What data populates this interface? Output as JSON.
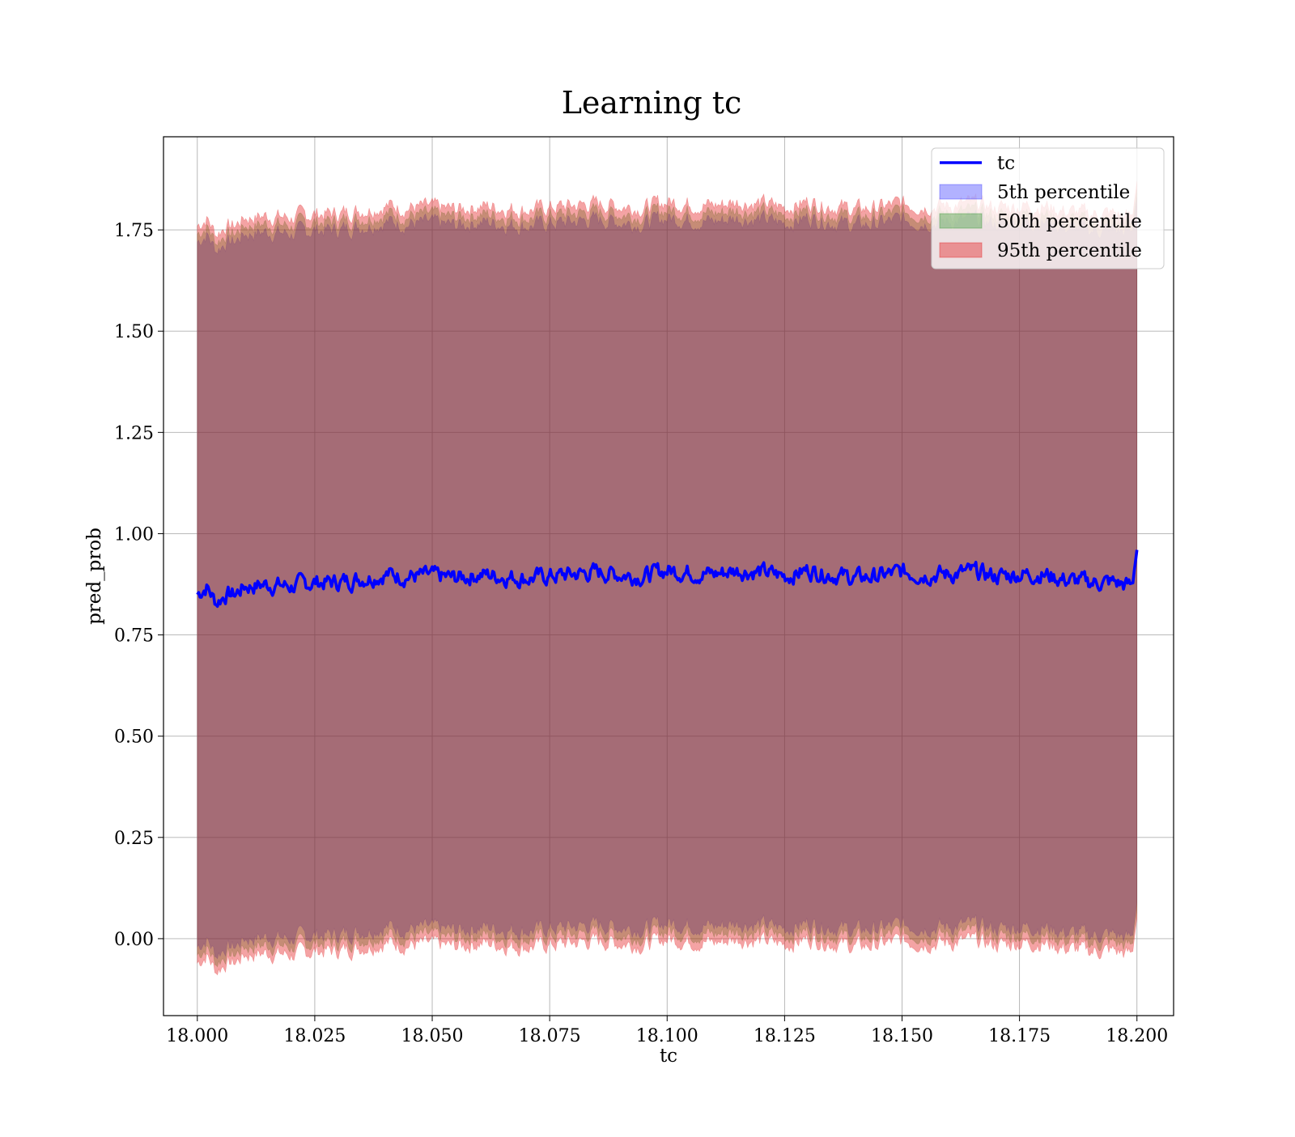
{
  "chart_data": {
    "type": "area",
    "title": "Learning tc",
    "xlabel": "tc",
    "ylabel": "pred_prob",
    "xlim": [
      17.9928,
      18.2078
    ],
    "ylim": [
      -0.19,
      1.98
    ],
    "x_ticks": [
      18.0,
      18.025,
      18.05,
      18.075,
      18.1,
      18.125,
      18.15,
      18.175,
      18.2
    ],
    "x_tick_labels": [
      "18.000",
      "18.025",
      "18.050",
      "18.075",
      "18.100",
      "18.125",
      "18.150",
      "18.175",
      "18.200"
    ],
    "y_ticks": [
      0.0,
      0.25,
      0.5,
      0.75,
      1.0,
      1.25,
      1.5,
      1.75
    ],
    "y_tick_labels": [
      "0.00",
      "0.25",
      "0.50",
      "0.75",
      "1.00",
      "1.25",
      "1.50",
      "1.75"
    ],
    "grid": true,
    "legend_position": "top-right",
    "x_range": [
      18.0,
      18.2
    ],
    "line_series": {
      "name": "tc",
      "color": "#0000ff",
      "x": [
        18.0,
        18.002,
        18.004,
        18.006,
        18.008,
        18.01,
        18.015,
        18.02,
        18.025,
        18.03,
        18.035,
        18.04,
        18.045,
        18.05,
        18.055,
        18.06,
        18.065,
        18.07,
        18.075,
        18.08,
        18.085,
        18.09,
        18.095,
        18.1,
        18.105,
        18.11,
        18.115,
        18.12,
        18.125,
        18.13,
        18.135,
        18.14,
        18.145,
        18.15,
        18.155,
        18.16,
        18.165,
        18.17,
        18.175,
        18.18,
        18.185,
        18.19,
        18.195,
        18.199,
        18.2
      ],
      "y": [
        0.85,
        0.87,
        0.83,
        0.85,
        0.85,
        0.87,
        0.875,
        0.87,
        0.88,
        0.88,
        0.89,
        0.9,
        0.895,
        0.895,
        0.89,
        0.9,
        0.895,
        0.89,
        0.895,
        0.9,
        0.905,
        0.9,
        0.895,
        0.91,
        0.905,
        0.9,
        0.91,
        0.905,
        0.895,
        0.91,
        0.9,
        0.89,
        0.895,
        0.905,
        0.9,
        0.9,
        0.905,
        0.895,
        0.9,
        0.9,
        0.885,
        0.88,
        0.88,
        0.87,
        0.96
      ]
    },
    "band_series": [
      {
        "name": "5th percentile",
        "color": "#0000ff",
        "opacity": 0.3,
        "offset_low": -0.87,
        "offset_high": 0.87
      },
      {
        "name": "50th percentile",
        "color": "#008000",
        "opacity": 0.3,
        "offset_low": -0.89,
        "offset_high": 0.89
      },
      {
        "name": "95th percentile",
        "color": "#e31a1c",
        "opacity": 0.4,
        "offset_low": -0.91,
        "offset_high": 0.91
      }
    ],
    "legend": [
      "tc",
      "5th percentile",
      "50th percentile",
      "95th percentile"
    ]
  }
}
